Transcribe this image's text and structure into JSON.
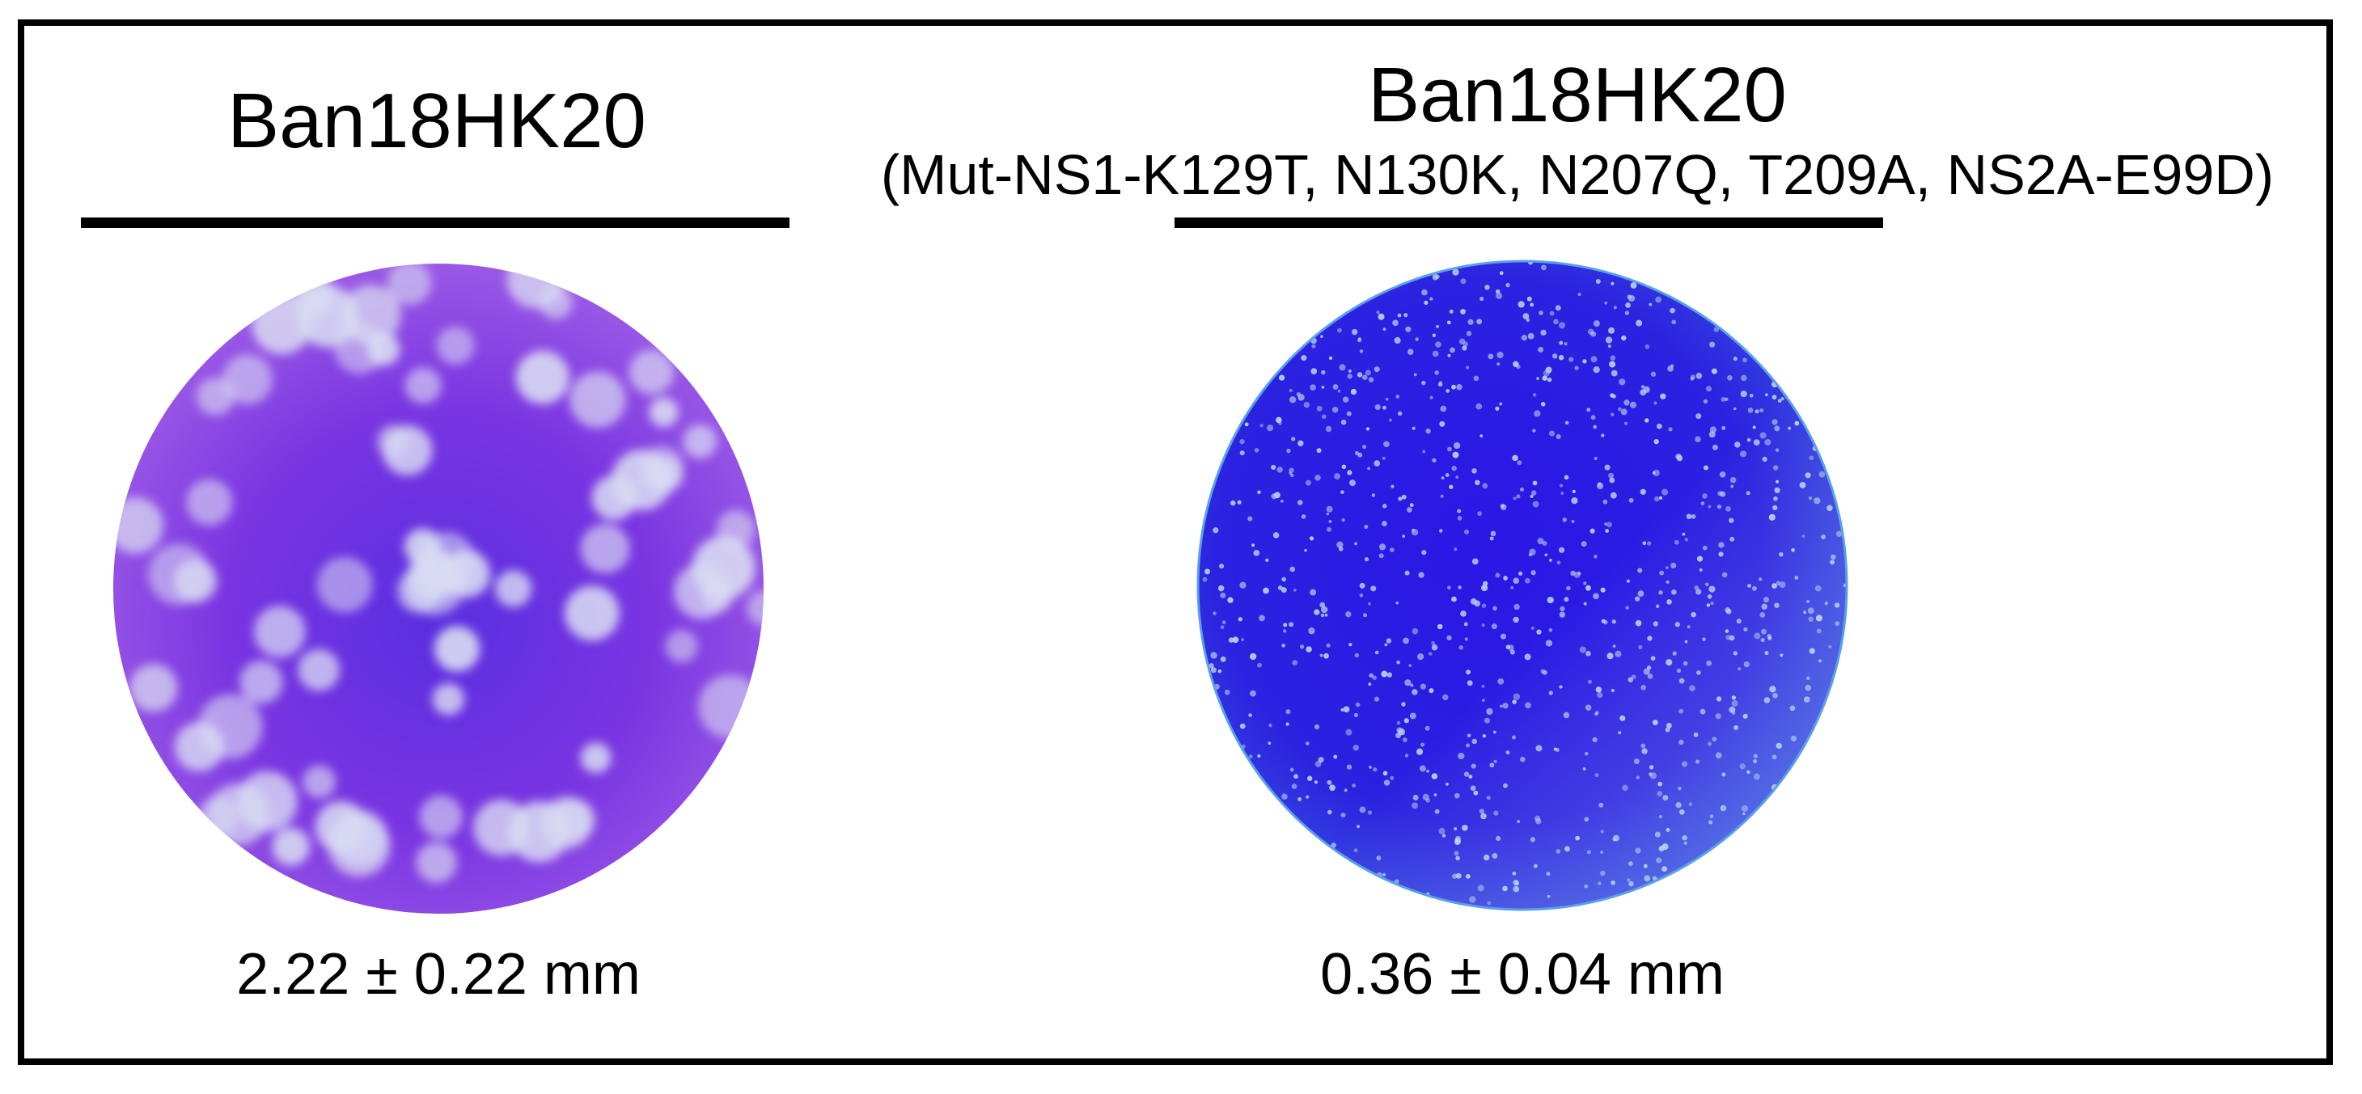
{
  "panels": [
    {
      "title": "Ban18HK20",
      "subtitle": "",
      "plaque_size": "2.22 ± 0.22 mm",
      "plate_color": "#7a2fe0",
      "plaque_color": "#d9dcf2"
    },
    {
      "title": "Ban18HK20",
      "subtitle": "(Mut-NS1-K129T, N130K, N207Q, T209A, NS2A-E99D)",
      "plaque_size": "0.36 ± 0.04 mm",
      "plate_color": "#2a1de6",
      "plaque_color": "#b9d2ea"
    }
  ]
}
